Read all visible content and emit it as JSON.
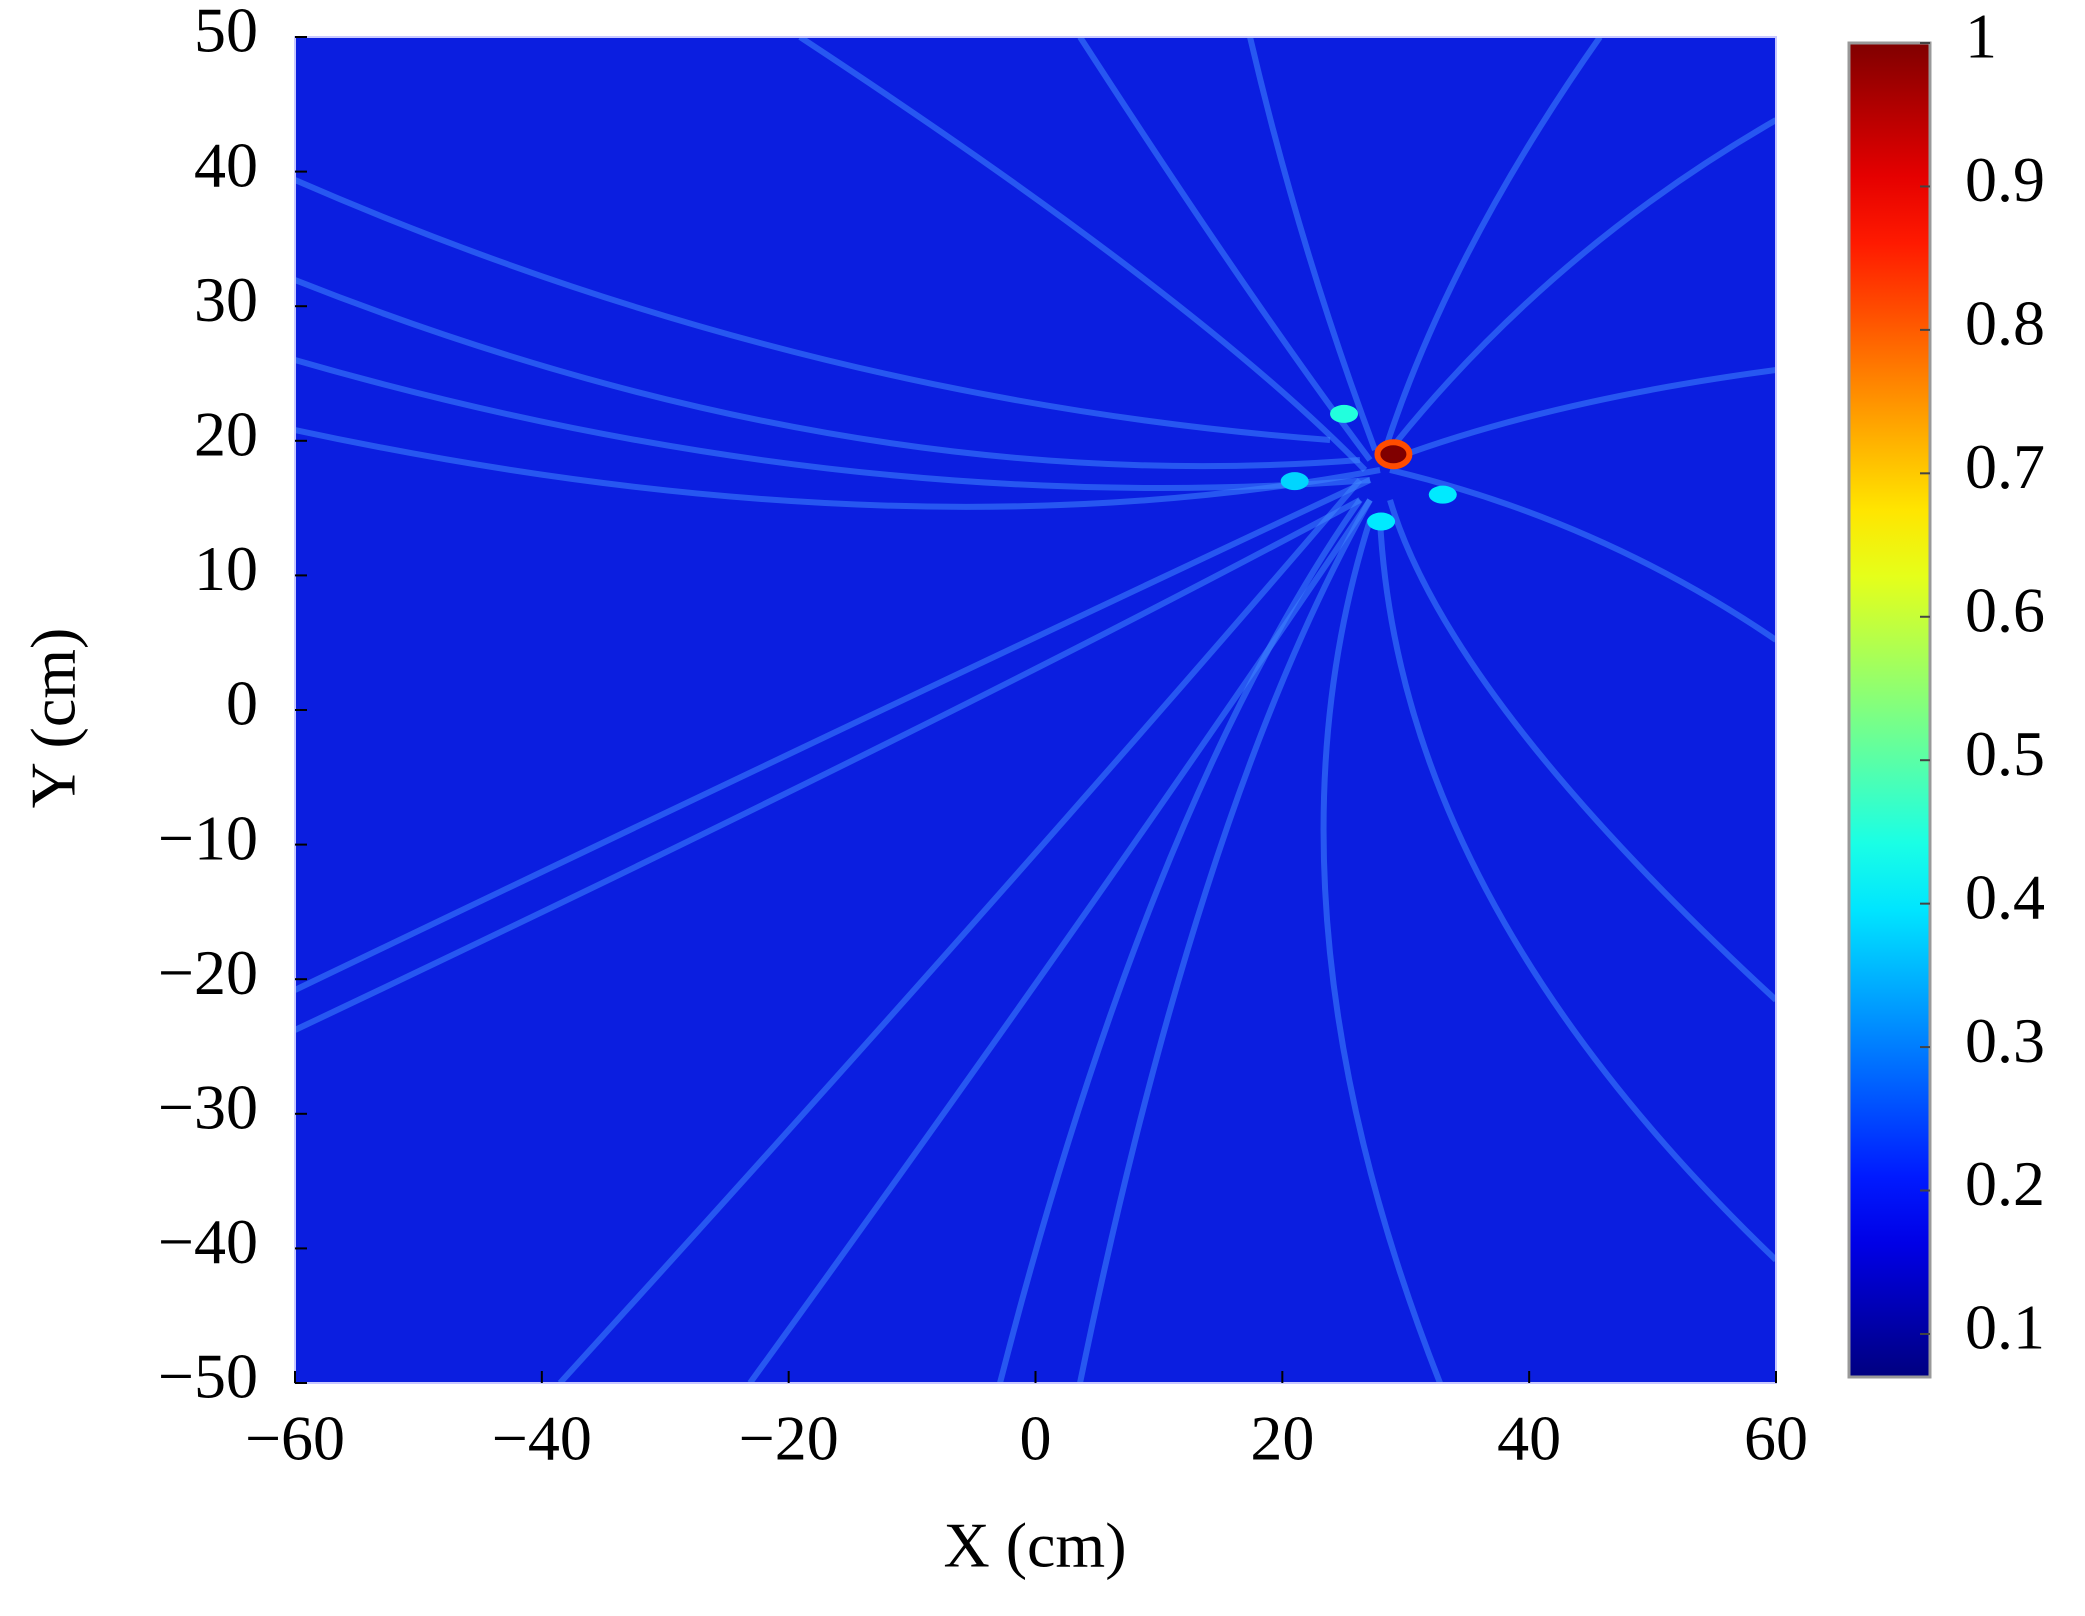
{
  "chart_data": {
    "type": "heatmap",
    "x_label": "X (cm)",
    "y_label": "Y (cm)",
    "xlim": [
      -60,
      60
    ],
    "xticks": [
      {
        "value": -60,
        "label": "−60"
      },
      {
        "value": -40,
        "label": "−40"
      },
      {
        "value": -20,
        "label": "−20"
      },
      0,
      20,
      40,
      60
    ],
    "ylim": [
      -50,
      50
    ],
    "yticks": [
      {
        "value": -50,
        "label": "−50"
      },
      {
        "value": -40,
        "label": "−40"
      },
      {
        "value": -30,
        "label": "−30"
      },
      {
        "value": -20,
        "label": "−20"
      },
      {
        "value": -10,
        "label": "−10"
      },
      0,
      10,
      20,
      30,
      40,
      50
    ],
    "colormap": "jet",
    "clim": [
      0.07,
      1
    ],
    "cticks": [
      0.1,
      0.2,
      0.3,
      0.4,
      0.5,
      0.6,
      0.7,
      0.8,
      0.9,
      1
    ],
    "points": {
      "x": [
        29,
        25,
        33,
        28,
        21
      ],
      "y": [
        19,
        22,
        16,
        14,
        17
      ],
      "values": [
        1,
        0.45,
        0.4,
        0.4,
        0.38
      ]
    }
  }
}
